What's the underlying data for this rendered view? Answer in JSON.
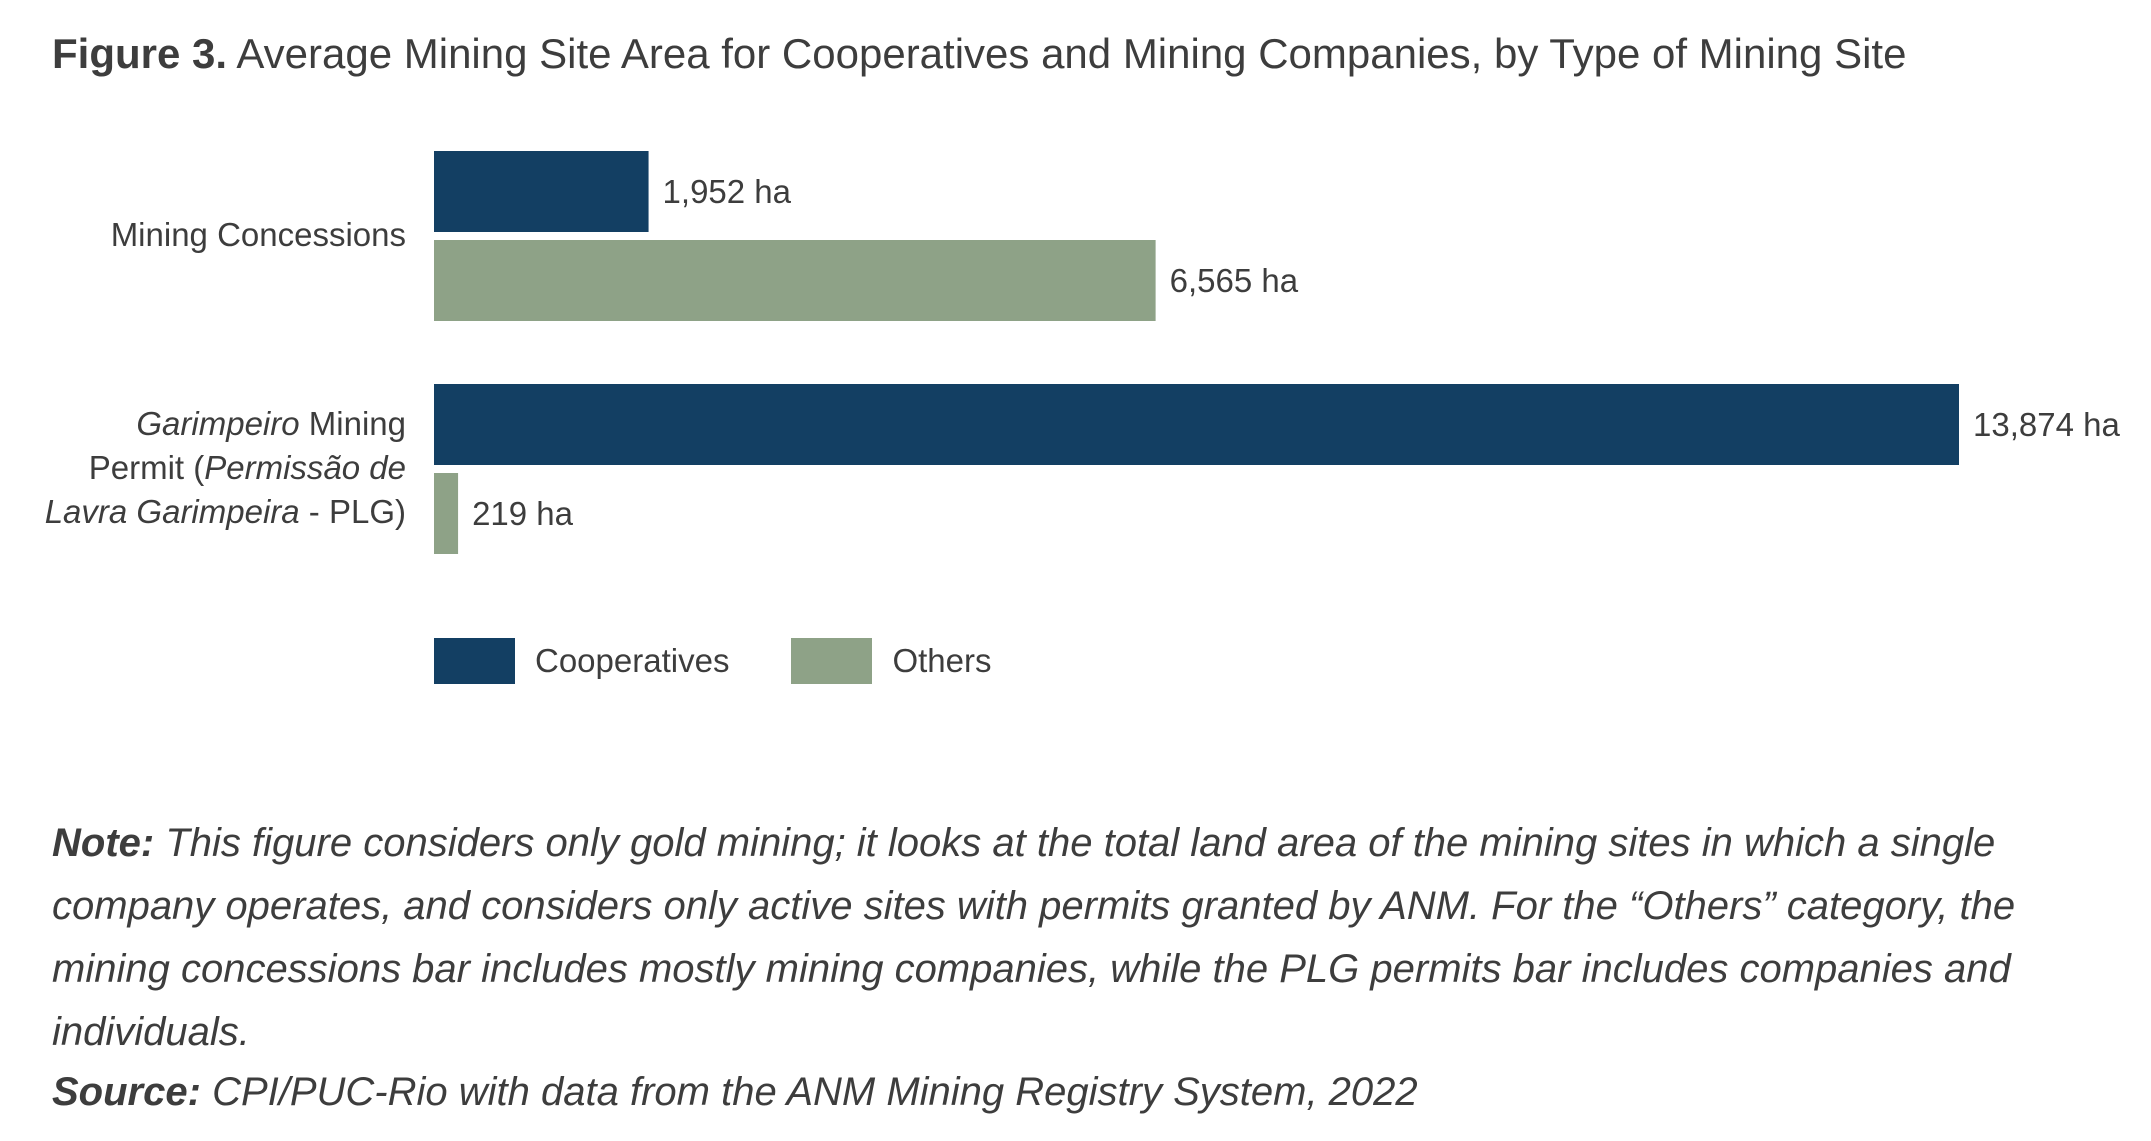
{
  "figure_label": "Figure 3.",
  "title": "Average Mining Site Area for Cooperatives and Mining Companies, by Type of Mining Site",
  "chart_data": {
    "type": "bar",
    "orientation": "horizontal",
    "title": "Average Mining Site Area for Cooperatives and Mining Companies, by Type of Mining Site",
    "categories": [
      "Mining Concessions",
      "Garimpeiro Mining Permit (Permissão de Lavra Garimpeira - PLG)"
    ],
    "category_label_parts": {
      "concessions": "Mining Concessions",
      "plg_italic_1": "Garimpeiro",
      "plg_text_1": " Mining",
      "plg_text_2": "Permit (",
      "plg_italic_2": "Permissão de",
      "plg_italic_3": "Lavra Garimpeira",
      "plg_text_3": " - PLG)"
    },
    "series": [
      {
        "name": "Cooperatives",
        "color": "#133f63",
        "values": [
          1952,
          13874
        ],
        "labels": [
          "1,952 ha",
          "13,874 ha"
        ]
      },
      {
        "name": "Others",
        "color": "#8ea287",
        "values": [
          6565,
          219
        ],
        "labels": [
          "6,565 ha",
          "219 ha"
        ]
      }
    ],
    "unit": "ha",
    "xlim": [
      0,
      13874
    ],
    "grid": false,
    "axes_visible": false,
    "legend_position": "bottom-left"
  },
  "note": {
    "label": "Note:",
    "text": "This figure considers only gold mining; it looks at the total land area of the mining sites in which a single company operates, and considers only active sites with permits granted by ANM. For the “Others” category, the mining concessions bar includes mostly mining companies, while the PLG permits bar includes companies and individuals."
  },
  "source": {
    "label": "Source:",
    "text": "CPI/PUC-Rio with data from the ANM Mining Registry System, 2022"
  }
}
